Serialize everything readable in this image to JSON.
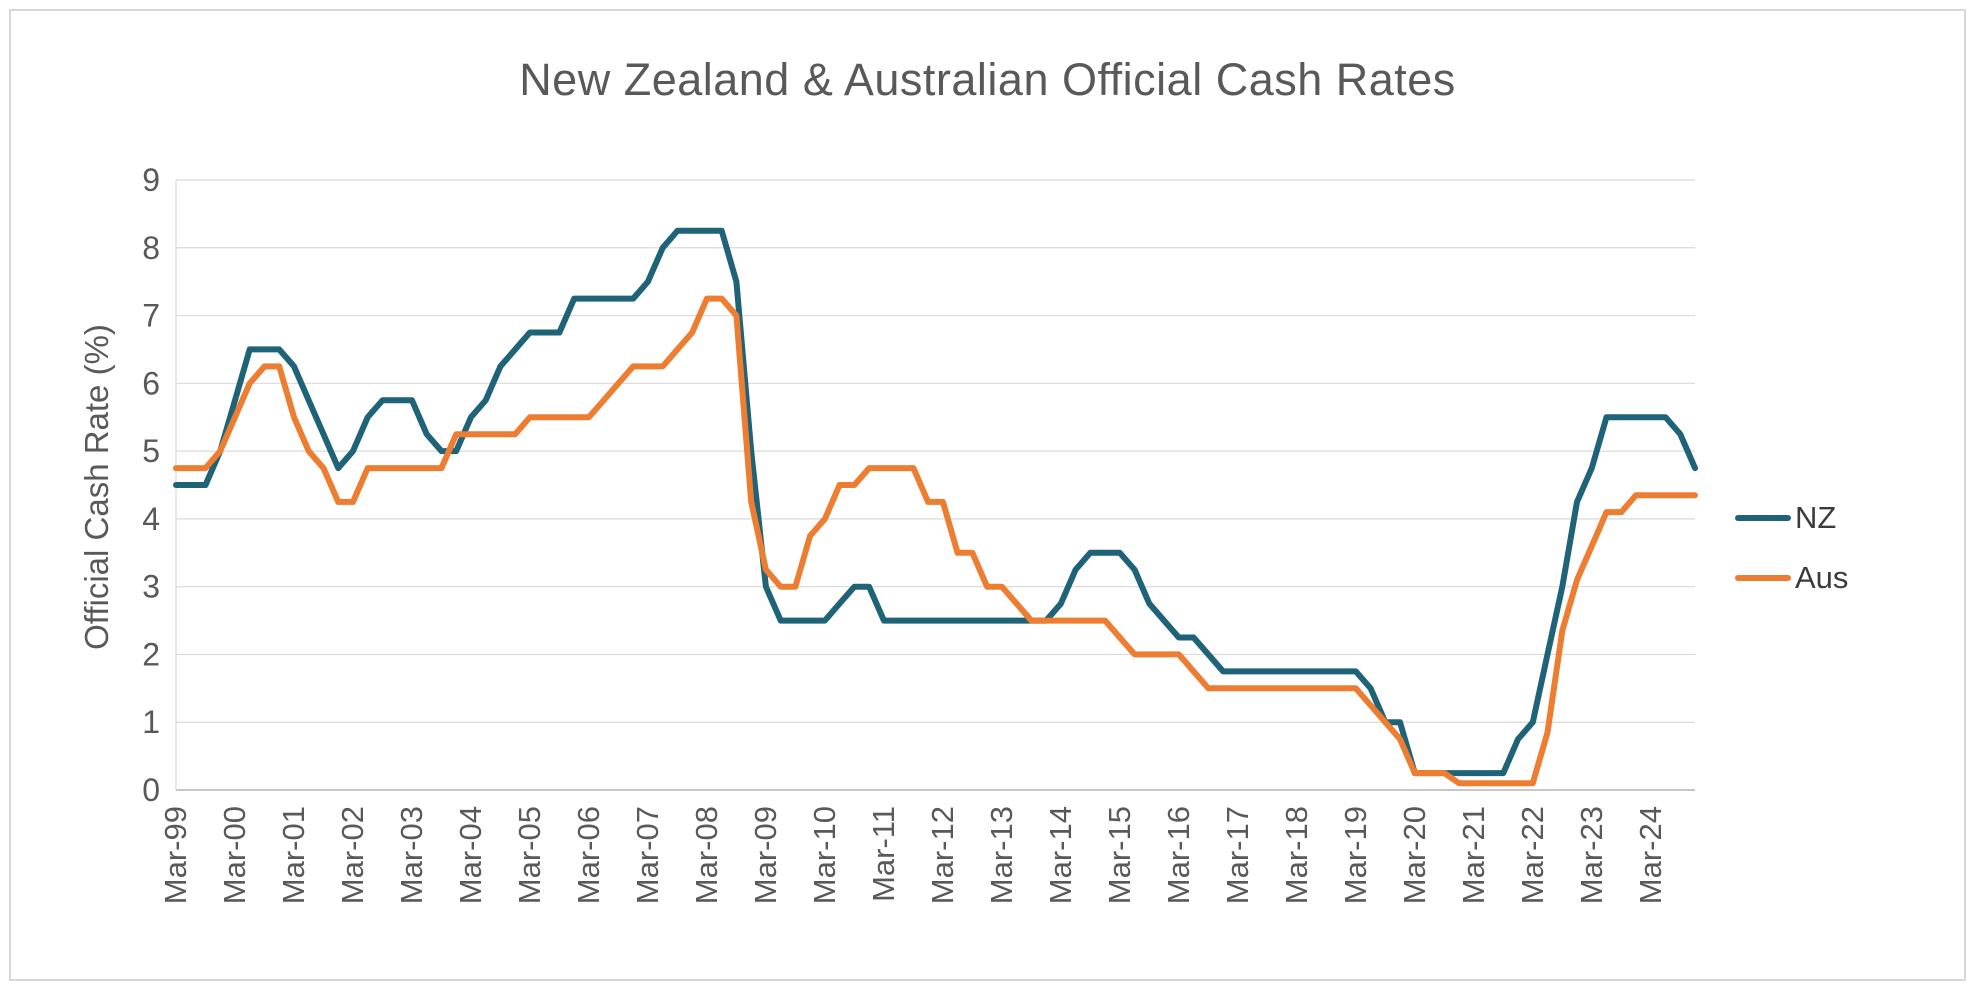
{
  "figure": {
    "background_color": "#FFFFFF",
    "border_color": "#D8D8D8",
    "text_color": "#595959",
    "gridline_color": "#D9D9D9",
    "axis_line_color": "#BFBFBF"
  },
  "chart_data": {
    "type": "line",
    "title": "New Zealand & Australian Official Cash Rates",
    "xlabel": "",
    "ylabel": "Official Cash Rate (%)",
    "ylim": [
      0,
      9
    ],
    "yticks": [
      0,
      1,
      2,
      3,
      4,
      5,
      6,
      7,
      8,
      9
    ],
    "grid": "horizontal",
    "legend_position": "right",
    "x_tick_label_rotation": -90,
    "x_tick_labels_shown": [
      "Mar-99",
      "Mar-00",
      "Mar-01",
      "Mar-02",
      "Mar-03",
      "Mar-04",
      "Mar-05",
      "Mar-06",
      "Mar-07",
      "Mar-08",
      "Mar-09",
      "Mar-10",
      "Mar-11",
      "Mar-12",
      "Mar-13",
      "Mar-14",
      "Mar-15",
      "Mar-16",
      "Mar-17",
      "Mar-18",
      "Mar-19",
      "Mar-20",
      "Mar-21",
      "Mar-22",
      "Mar-23",
      "Mar-24"
    ],
    "categories": [
      "Mar-99",
      "Jun-99",
      "Sep-99",
      "Dec-99",
      "Mar-00",
      "Jun-00",
      "Sep-00",
      "Dec-00",
      "Mar-01",
      "Jun-01",
      "Sep-01",
      "Dec-01",
      "Mar-02",
      "Jun-02",
      "Sep-02",
      "Dec-02",
      "Mar-03",
      "Jun-03",
      "Sep-03",
      "Dec-03",
      "Mar-04",
      "Jun-04",
      "Sep-04",
      "Dec-04",
      "Mar-05",
      "Jun-05",
      "Sep-05",
      "Dec-05",
      "Mar-06",
      "Jun-06",
      "Sep-06",
      "Dec-06",
      "Mar-07",
      "Jun-07",
      "Sep-07",
      "Dec-07",
      "Mar-08",
      "Jun-08",
      "Sep-08",
      "Dec-08",
      "Mar-09",
      "Jun-09",
      "Sep-09",
      "Dec-09",
      "Mar-10",
      "Jun-10",
      "Sep-10",
      "Dec-10",
      "Mar-11",
      "Jun-11",
      "Sep-11",
      "Dec-11",
      "Mar-12",
      "Jun-12",
      "Sep-12",
      "Dec-12",
      "Mar-13",
      "Jun-13",
      "Sep-13",
      "Dec-13",
      "Mar-14",
      "Jun-14",
      "Sep-14",
      "Dec-14",
      "Mar-15",
      "Jun-15",
      "Sep-15",
      "Dec-15",
      "Mar-16",
      "Jun-16",
      "Sep-16",
      "Dec-16",
      "Mar-17",
      "Jun-17",
      "Sep-17",
      "Dec-17",
      "Mar-18",
      "Jun-18",
      "Sep-18",
      "Dec-18",
      "Mar-19",
      "Jun-19",
      "Sep-19",
      "Dec-19",
      "Mar-20",
      "Jun-20",
      "Sep-20",
      "Dec-20",
      "Mar-21",
      "Jun-21",
      "Sep-21",
      "Dec-21",
      "Mar-22",
      "Jun-22",
      "Sep-22",
      "Dec-22",
      "Mar-23",
      "Jun-23",
      "Sep-23",
      "Dec-23",
      "Mar-24",
      "Jun-24",
      "Sep-24",
      "Dec-24"
    ],
    "series": [
      {
        "name": "NZ",
        "color": "#1F6378",
        "values": [
          4.5,
          4.5,
          4.5,
          5.0,
          5.75,
          6.5,
          6.5,
          6.5,
          6.25,
          5.75,
          5.25,
          4.75,
          5.0,
          5.5,
          5.75,
          5.75,
          5.75,
          5.25,
          5.0,
          5.0,
          5.5,
          5.75,
          6.25,
          6.5,
          6.75,
          6.75,
          6.75,
          7.25,
          7.25,
          7.25,
          7.25,
          7.25,
          7.5,
          8.0,
          8.25,
          8.25,
          8.25,
          8.25,
          7.5,
          5.0,
          3.0,
          2.5,
          2.5,
          2.5,
          2.5,
          2.75,
          3.0,
          3.0,
          2.5,
          2.5,
          2.5,
          2.5,
          2.5,
          2.5,
          2.5,
          2.5,
          2.5,
          2.5,
          2.5,
          2.5,
          2.75,
          3.25,
          3.5,
          3.5,
          3.5,
          3.25,
          2.75,
          2.5,
          2.25,
          2.25,
          2.0,
          1.75,
          1.75,
          1.75,
          1.75,
          1.75,
          1.75,
          1.75,
          1.75,
          1.75,
          1.75,
          1.5,
          1.0,
          1.0,
          0.25,
          0.25,
          0.25,
          0.25,
          0.25,
          0.25,
          0.25,
          0.75,
          1.0,
          2.0,
          3.0,
          4.25,
          4.75,
          5.5,
          5.5,
          5.5,
          5.5,
          5.5,
          5.25,
          4.75
        ]
      },
      {
        "name": "Aus",
        "color": "#ED7D31",
        "values": [
          4.75,
          4.75,
          4.75,
          5.0,
          5.5,
          6.0,
          6.25,
          6.25,
          5.5,
          5.0,
          4.75,
          4.25,
          4.25,
          4.75,
          4.75,
          4.75,
          4.75,
          4.75,
          4.75,
          5.25,
          5.25,
          5.25,
          5.25,
          5.25,
          5.5,
          5.5,
          5.5,
          5.5,
          5.5,
          5.75,
          6.0,
          6.25,
          6.25,
          6.25,
          6.5,
          6.75,
          7.25,
          7.25,
          7.0,
          4.25,
          3.25,
          3.0,
          3.0,
          3.75,
          4.0,
          4.5,
          4.5,
          4.75,
          4.75,
          4.75,
          4.75,
          4.25,
          4.25,
          3.5,
          3.5,
          3.0,
          3.0,
          2.75,
          2.5,
          2.5,
          2.5,
          2.5,
          2.5,
          2.5,
          2.25,
          2.0,
          2.0,
          2.0,
          2.0,
          1.75,
          1.5,
          1.5,
          1.5,
          1.5,
          1.5,
          1.5,
          1.5,
          1.5,
          1.5,
          1.5,
          1.5,
          1.25,
          1.0,
          0.75,
          0.25,
          0.25,
          0.25,
          0.1,
          0.1,
          0.1,
          0.1,
          0.1,
          0.1,
          0.85,
          2.35,
          3.1,
          3.6,
          4.1,
          4.1,
          4.35,
          4.35,
          4.35,
          4.35,
          4.35
        ]
      }
    ]
  }
}
